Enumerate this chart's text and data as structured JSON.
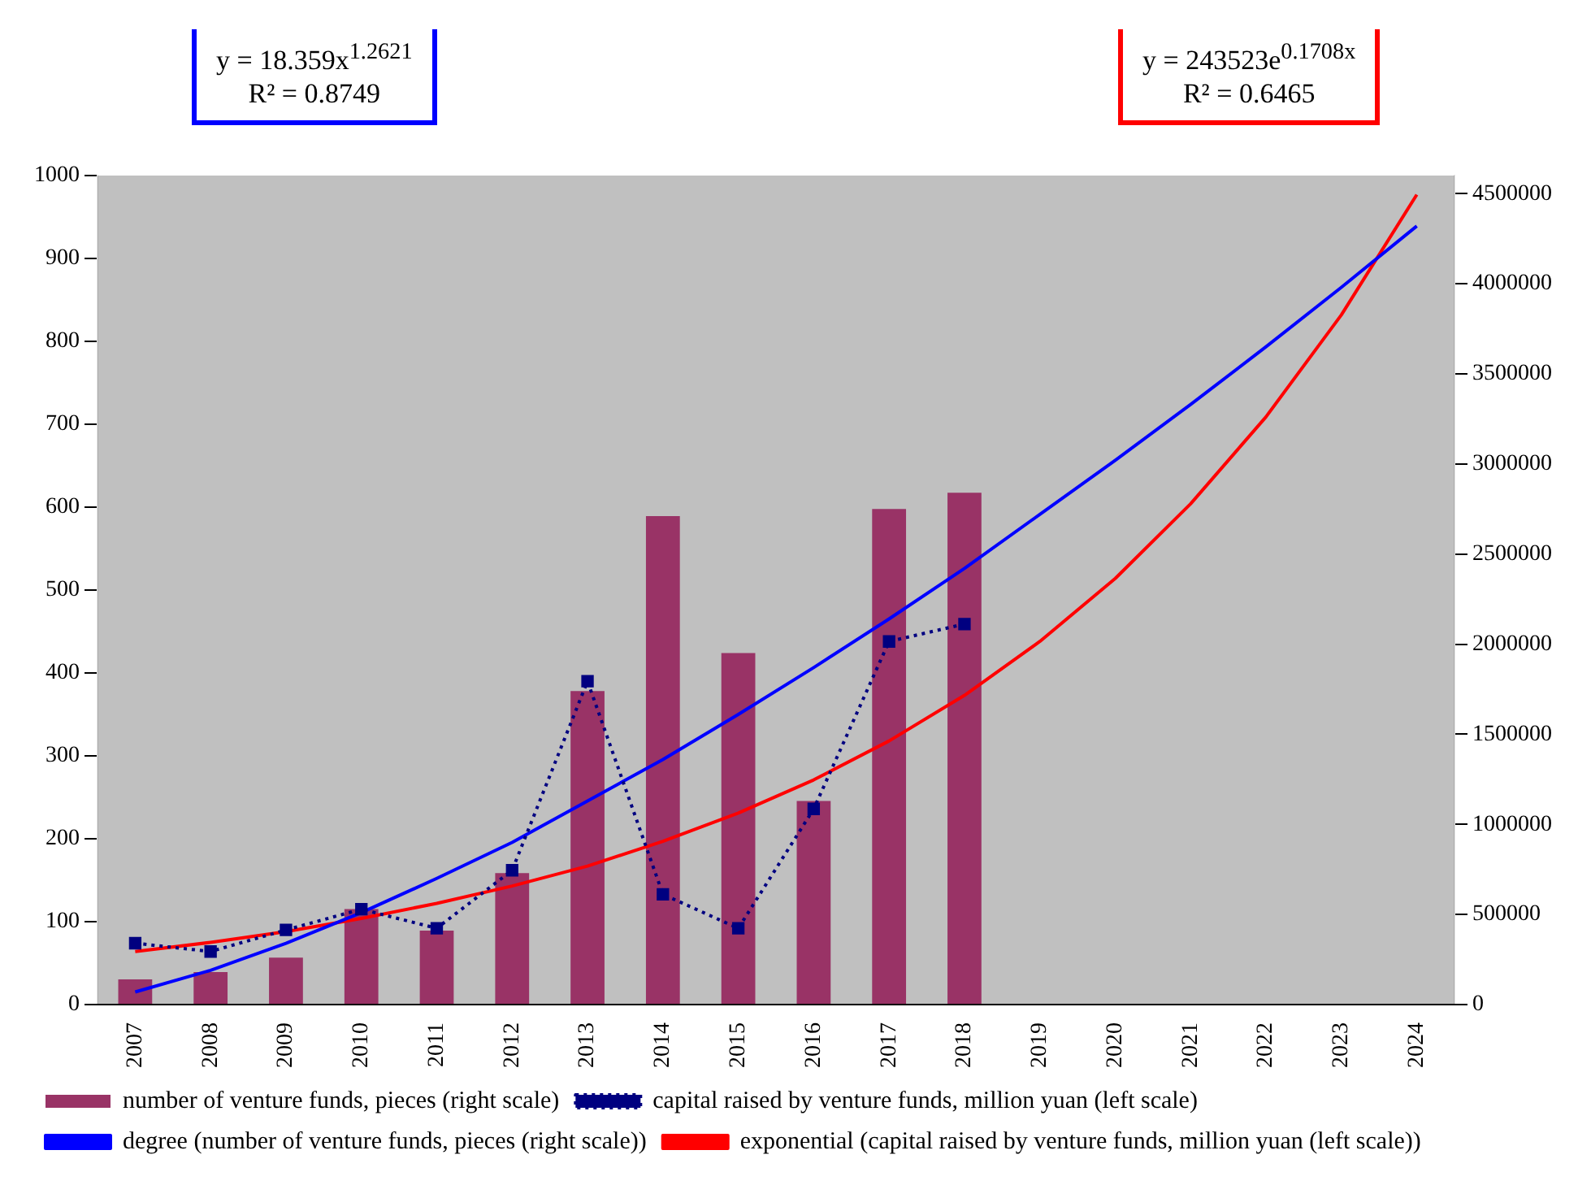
{
  "chart_data": {
    "type": "bar",
    "categories": [
      "2007",
      "2008",
      "2009",
      "2010",
      "2011",
      "2012",
      "2013",
      "2014",
      "2015",
      "2016",
      "2017",
      "2018",
      "2019",
      "2020",
      "2021",
      "2022",
      "2023",
      "2024"
    ],
    "series": [
      {
        "name": "number of venture funds, pieces (right scale)",
        "axis": "y2",
        "color": "#993366",
        "values": [
          140000,
          180000,
          260000,
          530000,
          410000,
          730000,
          1740000,
          2710000,
          1950000,
          1130000,
          2750000,
          2840000,
          null,
          null,
          null,
          null,
          null,
          null
        ]
      },
      {
        "name": "capital raised by venture funds, million yuan (left scale)",
        "type": "line",
        "color": "#000080",
        "marker": "square",
        "line_style": "dotted",
        "values": [
          74,
          64,
          90,
          115,
          92,
          162,
          390,
          133,
          92,
          236,
          438,
          459,
          null,
          null,
          null,
          null,
          null,
          null
        ]
      },
      {
        "name": "degree (number of venture funds, pieces (right scale))",
        "type": "line",
        "axis": "y2",
        "color": "#0000ff",
        "marker": "none",
        "line_style": "solid",
        "values": [
          70000,
          190000,
          340000,
          510000,
          700000,
          900000,
          1130000,
          1360000,
          1610000,
          1870000,
          2140000,
          2420000,
          2720000,
          3020000,
          3330000,
          3650000,
          3980000,
          4320000
        ]
      },
      {
        "name": "exponential (capital raised by venture funds, million yuan (left scale))",
        "type": "line",
        "color": "#ff0000",
        "marker": "none",
        "line_style": "solid",
        "values": [
          64,
          75,
          88,
          104,
          122,
          143,
          167,
          197,
          231,
          271,
          318,
          373,
          438,
          514,
          604,
          709,
          832,
          977
        ]
      }
    ],
    "ylim": [
      0,
      1000
    ],
    "yticks": [
      0,
      100,
      200,
      300,
      400,
      500,
      600,
      700,
      800,
      900,
      1000
    ],
    "y2lim": [
      0,
      4600000
    ],
    "y2ticks": [
      0,
      500000,
      1000000,
      1500000,
      2000000,
      2500000,
      3000000,
      3500000,
      4000000,
      4500000
    ],
    "grid": false,
    "legend": "bottom",
    "annotations": [
      "y = 18.359x$^{1.2621}$",
      "R² = 0.8749",
      "y = 243523e$^{0.1708x}$",
      "R² = 0.6465"
    ]
  }
}
